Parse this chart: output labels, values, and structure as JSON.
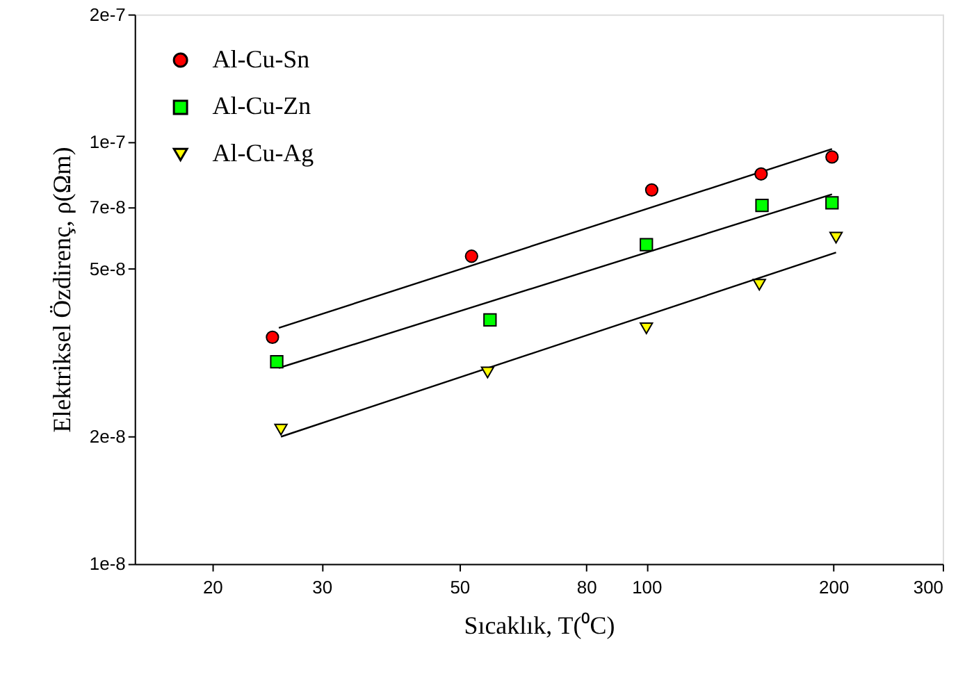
{
  "chart_data": {
    "type": "scatter",
    "xlabel": "Sıcaklık, T(⁰C)",
    "ylabel": "Elektriksel Özdirenç, ρ(Ωm)",
    "log": "xy",
    "grid": false,
    "legend": "top left",
    "xlim": [
      15,
      300
    ],
    "xticks": [
      20,
      30,
      50,
      80,
      100,
      200,
      300
    ],
    "ylim": [
      1e-08,
      2e-07
    ],
    "yticks": [
      {
        "value": 1e-08,
        "label": "1e-8"
      },
      {
        "value": 2e-08,
        "label": "2e-8"
      },
      {
        "value": 5e-08,
        "label": "5e-8"
      },
      {
        "value": 7e-08,
        "label": "7e-8"
      },
      {
        "value": 1e-07,
        "label": "1e-7"
      },
      {
        "value": 2e-07,
        "label": "2e-7"
      }
    ],
    "series": [
      {
        "name": "Al-Cu-Sn",
        "marker": "circle",
        "color": "#ff0000",
        "x": [
          25,
          52.3,
          102,
          153,
          199
        ],
        "values": [
          3.44e-08,
          5.35e-08,
          7.68e-08,
          8.38e-08,
          9.19e-08
        ]
      },
      {
        "name": "Al-Cu-Zn",
        "marker": "square",
        "color": "#00ff00",
        "x": [
          25.4,
          56,
          100,
          153.5,
          199
        ],
        "values": [
          3.01e-08,
          3.78e-08,
          5.7e-08,
          7.06e-08,
          7.16e-08
        ]
      },
      {
        "name": "Al-Cu-Ag",
        "marker": "triangle",
        "color": "#ffff00",
        "x": [
          25.8,
          55.5,
          100,
          152,
          202
        ],
        "values": [
          2.08e-08,
          2.84e-08,
          3.61e-08,
          4.58e-08,
          5.92e-08
        ]
      },
      {
        "type": "line",
        "color": "#000000",
        "x": [
          25.6,
          199
        ],
        "values": [
          3.62e-08,
          9.6e-08
        ]
      },
      {
        "type": "line",
        "color": "#000000",
        "x": [
          25.6,
          199
        ],
        "values": [
          2.91e-08,
          7.5e-08
        ]
      },
      {
        "type": "line",
        "color": "#000000",
        "x": [
          25.8,
          202
        ],
        "values": [
          2e-08,
          5.46e-08
        ]
      }
    ]
  }
}
